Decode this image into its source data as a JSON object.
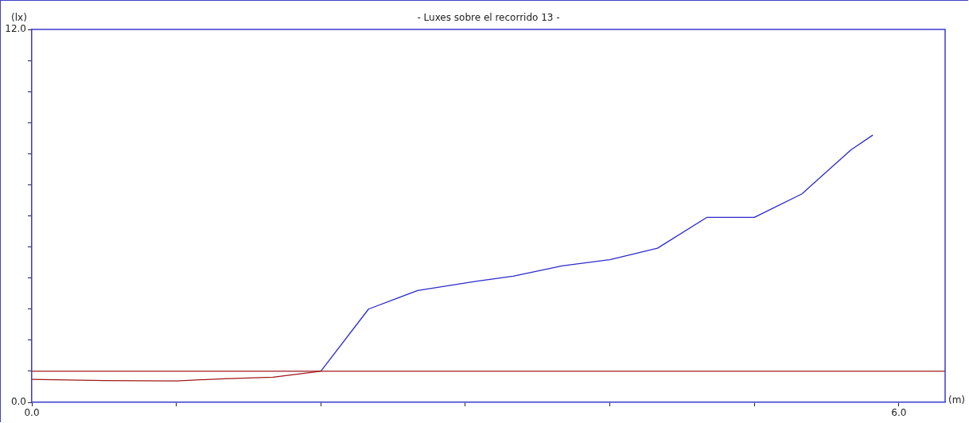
{
  "chart_data": {
    "type": "line",
    "title": "- Luxes sobre el recorrido 13 -",
    "xlabel": "(m)",
    "ylabel": "(lx)",
    "xlim": [
      0,
      6.32
    ],
    "ylim": [
      0,
      12
    ],
    "xticks": [
      {
        "value": 0,
        "label": "0.0"
      },
      {
        "value": 1,
        "label": null
      },
      {
        "value": 2,
        "label": null
      },
      {
        "value": 3,
        "label": null
      },
      {
        "value": 4,
        "label": null
      },
      {
        "value": 5,
        "label": null
      },
      {
        "value": 6,
        "label": "6.0"
      }
    ],
    "yticks": [
      {
        "value": 0,
        "label": "0.0"
      },
      {
        "value": 1,
        "label": null
      },
      {
        "value": 2,
        "label": null
      },
      {
        "value": 3,
        "label": null
      },
      {
        "value": 4,
        "label": null
      },
      {
        "value": 5,
        "label": null
      },
      {
        "value": 6,
        "label": null
      },
      {
        "value": 7,
        "label": null
      },
      {
        "value": 8,
        "label": null
      },
      {
        "value": 9,
        "label": null
      },
      {
        "value": 10,
        "label": null
      },
      {
        "value": 11,
        "label": null
      },
      {
        "value": 12,
        "label": "12.0"
      }
    ],
    "series": [
      {
        "color": "#a01818",
        "x": [
          0,
          0.5,
          1.0,
          1.33,
          1.67,
          2.0
        ],
        "values": [
          0.74,
          0.7,
          0.69,
          0.76,
          0.81,
          1.0
        ]
      },
      {
        "color": "#2a2acc",
        "x": [
          2.0,
          2.33,
          2.67,
          3.08,
          3.33,
          3.67,
          4.0,
          4.33,
          4.67,
          5.0,
          5.33,
          5.67,
          5.82
        ],
        "values": [
          1.0,
          3.0,
          3.6,
          3.9,
          4.06,
          4.39,
          4.59,
          4.96,
          5.95,
          5.95,
          6.71,
          8.13,
          8.6
        ]
      }
    ],
    "ref_lines": [
      {
        "axis": "y",
        "value": 1.0,
        "color": "#a01818"
      }
    ],
    "grid": false
  }
}
